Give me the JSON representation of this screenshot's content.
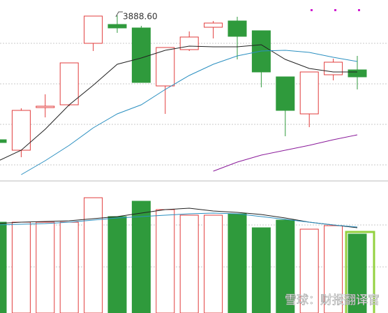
{
  "chart_data": [
    {
      "type": "candlestick",
      "annotation": "3888.60",
      "categories": [
        null,
        null,
        null,
        null,
        null,
        null,
        null,
        null,
        null,
        null,
        null,
        null,
        null,
        null,
        null,
        null
      ],
      "open": [
        3710.6,
        3695.6,
        3756.6,
        3760.6,
        3848.6,
        3875.6,
        3870.6,
        3787.6,
        3839.6,
        3871.6,
        3880.6,
        3866.6,
        3800.6,
        3747.6,
        3803.6,
        3810.6
      ],
      "close": [
        3706.6,
        3752.6,
        3758.6,
        3820.6,
        3887.6,
        3870.6,
        3792.6,
        3842.6,
        3857.6,
        3877.6,
        3858.6,
        3807.6,
        3752.6,
        3807.6,
        3821.6,
        3800.6
      ],
      "high": [
        3712.6,
        3755.6,
        3775.6,
        3820.6,
        3887.6,
        3888.6,
        3873.6,
        3842.6,
        3865.6,
        3880.6,
        3886.6,
        3866.6,
        3800.6,
        3807.6,
        3826.6,
        3830.6
      ],
      "low": [
        3704.6,
        3685.6,
        3742.6,
        3758.6,
        3837.6,
        3863.6,
        3792.6,
        3747.6,
        3837.6,
        3855.6,
        3825.6,
        3785.6,
        3715.6,
        3728.6,
        3795.6,
        3782.6
      ],
      "up_color": "#e23c3c",
      "down_color": "#2f9a3c",
      "lines": [
        {
          "color": "#222222",
          "values": [
            3679.6,
            3695.6,
            3725.6,
            3760.6,
            3788.6,
            3818.6,
            3827.6,
            3838.6,
            3844.6,
            3843.6,
            3843.6,
            3846.6,
            3825.6,
            3812.6,
            3807.6,
            3807.6
          ]
        },
        {
          "color": "#2a8fc0",
          "values": [
            null,
            3660.6,
            3680.6,
            3702.6,
            3727.6,
            3747.6,
            3760.6,
            3782.6,
            3802.6,
            3818.6,
            3830.6,
            3837.6,
            3838.6,
            3835.6,
            3828.6,
            3822.6
          ]
        },
        {
          "color": "#8a1a9a",
          "values": [
            null,
            null,
            null,
            null,
            null,
            null,
            null,
            null,
            null,
            3665.6,
            3678.6,
            3688.6,
            3695.6,
            3702.6,
            3710.6,
            3717.6
          ]
        }
      ],
      "ylim": [
        3652.6,
        3910.6
      ],
      "yticks": [
        3674.6,
        3732.6,
        3790.6,
        3848.6
      ],
      "grid": true
    },
    {
      "type": "bar",
      "categories": [
        null,
        null,
        null,
        null,
        null,
        null,
        null,
        null,
        null,
        null,
        null,
        null,
        null,
        null,
        null,
        null
      ],
      "values": [
        130,
        130,
        130,
        130,
        165,
        138,
        160,
        148,
        140,
        140,
        142,
        122,
        133,
        120,
        125,
        113
      ],
      "lines": [
        {
          "color": "#222222",
          "values": [
            128,
            130,
            131,
            132,
            135,
            138,
            143,
            148,
            150,
            146,
            144,
            141,
            136,
            130,
            126,
            122
          ]
        },
        {
          "color": "#2a8fc0",
          "values": [
            126,
            127,
            128,
            130,
            133,
            136,
            138,
            140,
            142,
            143,
            142,
            138,
            134,
            130,
            126,
            123
          ]
        }
      ],
      "ylim": [
        0,
        186
      ],
      "yticks": [
        66,
        126
      ],
      "grid": true
    }
  ],
  "watermark": "雪球：财报翻译官"
}
